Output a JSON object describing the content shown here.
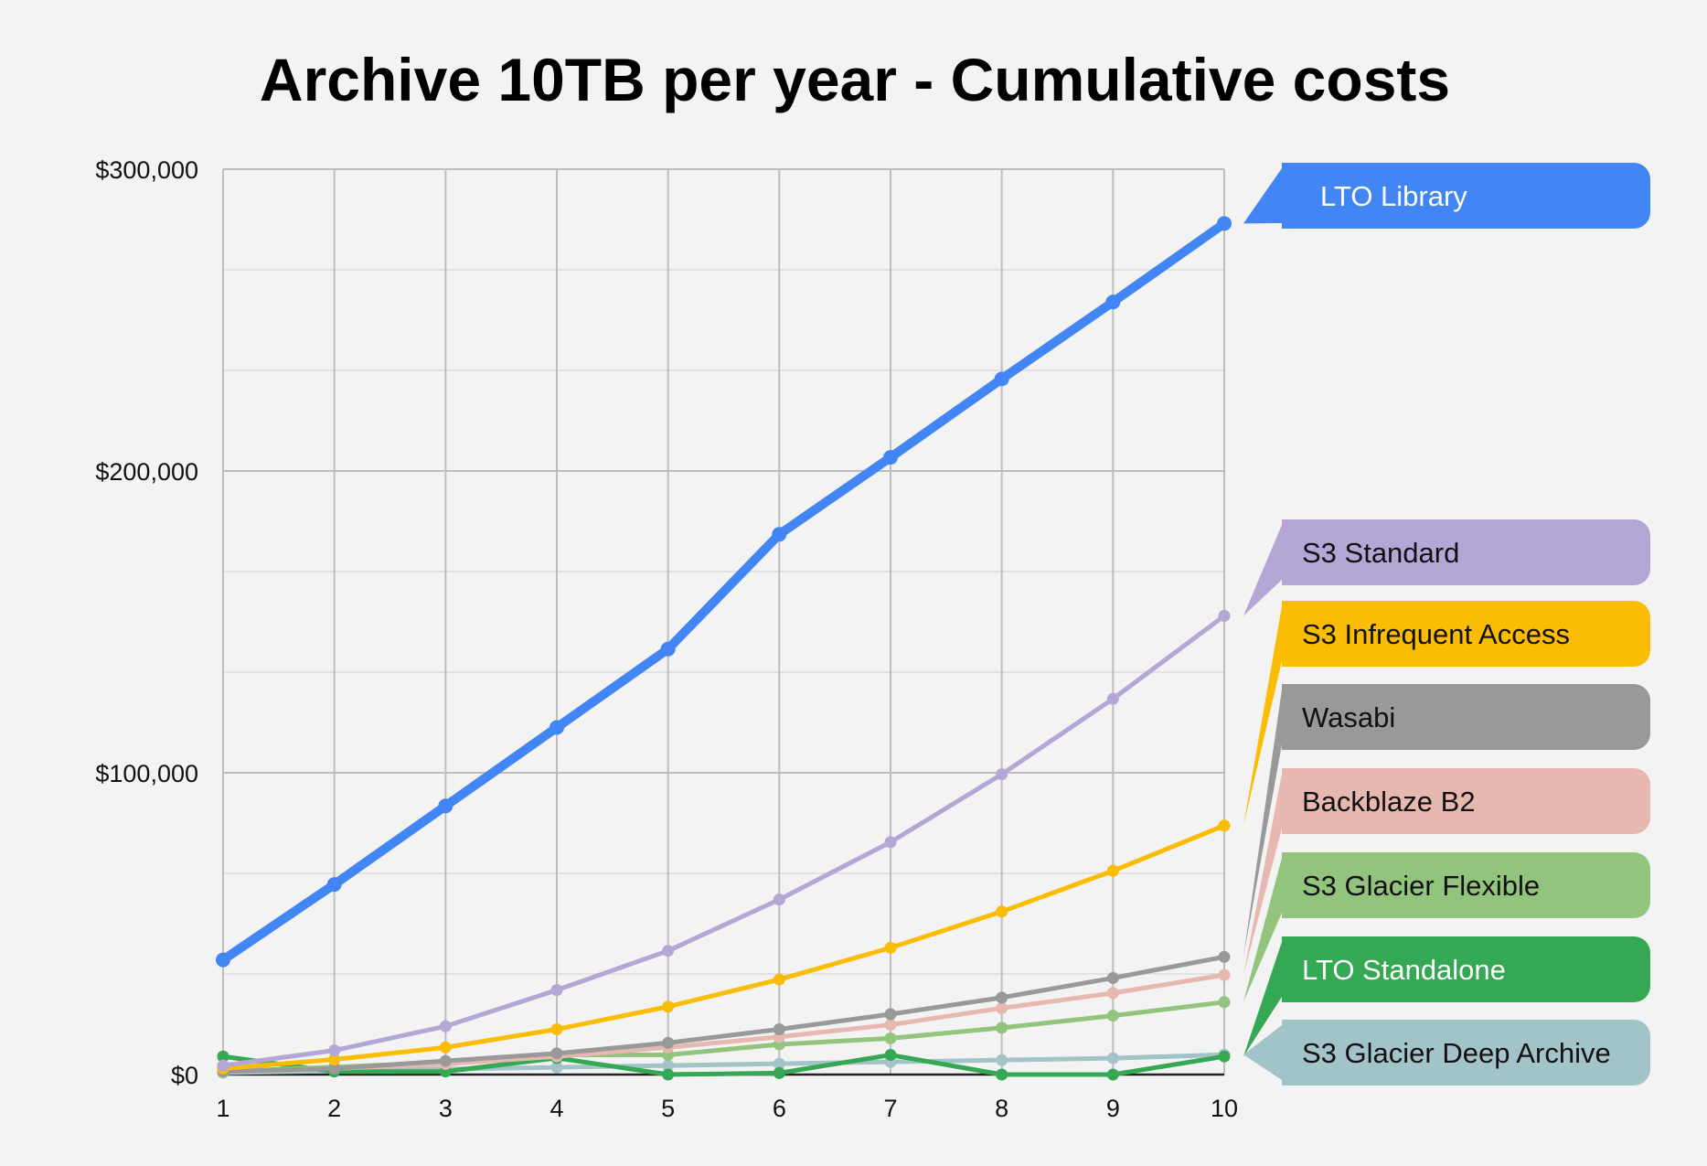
{
  "chart_data": {
    "type": "line",
    "title": "Archive 10TB per year - Cumulative costs",
    "xlabel": "",
    "ylabel": "",
    "x": [
      1,
      2,
      3,
      4,
      5,
      6,
      7,
      8,
      9,
      10
    ],
    "y_ticks": [
      "$0",
      "$100,000",
      "$200,000",
      "$300,000"
    ],
    "x_ticks": [
      "1",
      "2",
      "3",
      "4",
      "5",
      "6",
      "7",
      "8",
      "9",
      "10"
    ],
    "ylim": [
      0,
      300000
    ],
    "grid": true,
    "legend_position": "right",
    "series": [
      {
        "name": "S3 Glacier Deep Archive",
        "color": "#a2c4c9",
        "values": [
          600,
          1200,
          1800,
          2400,
          3000,
          3600,
          4200,
          4800,
          5400,
          6600
        ]
      },
      {
        "name": "LTO Standalone",
        "color": "#34a853",
        "values": [
          6000,
          1000,
          1000,
          5500,
          0,
          500,
          6500,
          0,
          0,
          6000
        ]
      },
      {
        "name": "S3 Glacier Flexible",
        "color": "#93c47d",
        "values": [
          1000,
          2500,
          4000,
          6500,
          6500,
          10000,
          12000,
          15500,
          19500,
          24000
        ]
      },
      {
        "name": "Backblaze B2",
        "color": "#e6b8af",
        "values": [
          1000,
          2000,
          3500,
          6000,
          9000,
          12500,
          16500,
          22000,
          27000,
          33000
        ]
      },
      {
        "name": "Wasabi",
        "color": "#999999",
        "values": [
          1000,
          2000,
          4500,
          7000,
          10500,
          15000,
          20000,
          25500,
          32000,
          39000
        ]
      },
      {
        "name": "S3 Infrequent Access",
        "color": "#fbbc04",
        "values": [
          2000,
          5000,
          9000,
          15000,
          22500,
          31500,
          42000,
          54000,
          67500,
          82500
        ]
      },
      {
        "name": "S3 Standard",
        "color": "#b4a7d6",
        "values": [
          3000,
          8000,
          16000,
          28000,
          41000,
          58000,
          77000,
          99500,
          124500,
          152000
        ]
      },
      {
        "name": "LTO Library",
        "color": "#4285f4",
        "values": [
          38000,
          63000,
          89000,
          115000,
          141000,
          179000,
          204500,
          230500,
          256000,
          282000
        ]
      }
    ]
  }
}
